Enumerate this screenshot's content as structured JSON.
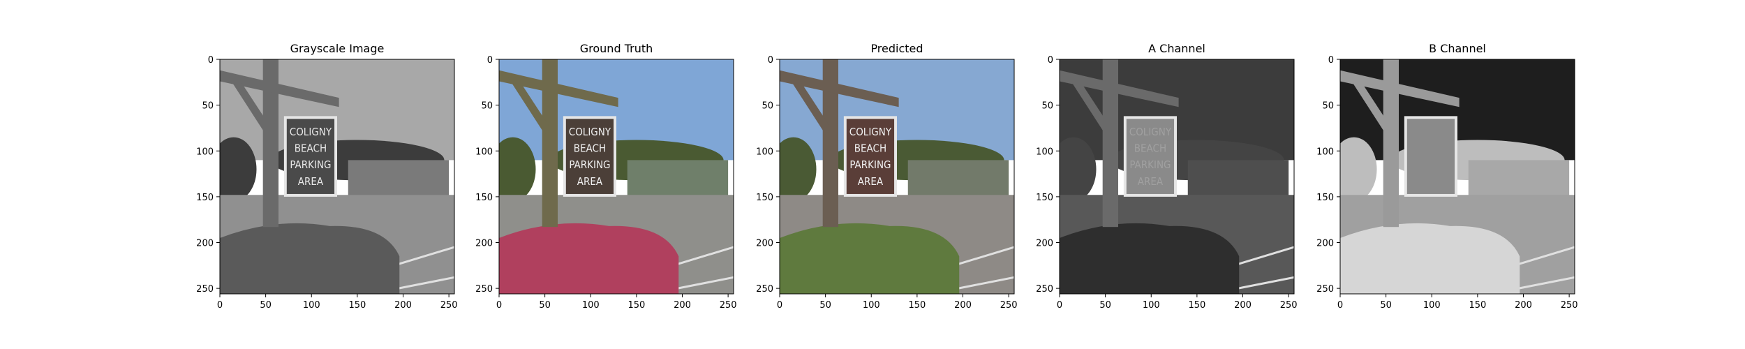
{
  "chart_data": [
    {
      "type": "image",
      "title": "Grayscale Image",
      "xlim": [
        0,
        256
      ],
      "ylim": [
        256,
        0
      ],
      "xticks": [
        0,
        50,
        100,
        150,
        200,
        250
      ],
      "yticks": [
        0,
        50,
        100,
        150,
        200,
        250
      ],
      "sign_text": [
        "COLIGNY",
        "BEACH",
        "PARKING",
        "AREA"
      ],
      "palette": {
        "sky": "#a8a8a8",
        "post": "#6a6a6a",
        "sign": "#4a4a4a",
        "road": "#909090",
        "bush": "#5a5a5a",
        "trees": "#3c3c3c",
        "building": "#7a7a7a",
        "sign_text": "#e8e8e8"
      }
    },
    {
      "type": "image",
      "title": "Ground Truth",
      "xlim": [
        0,
        256
      ],
      "ylim": [
        256,
        0
      ],
      "xticks": [
        0,
        50,
        100,
        150,
        200,
        250
      ],
      "yticks": [
        0,
        50,
        100,
        150,
        200,
        250
      ],
      "sign_text": [
        "COLIGNY",
        "BEACH",
        "PARKING",
        "AREA"
      ],
      "palette": {
        "sky": "#7fa6d6",
        "post": "#6f6a4c",
        "sign": "#4b3f38",
        "road": "#8f8f8b",
        "bush": "#b0405e",
        "trees": "#4a5a32",
        "building": "#6f7f6a",
        "sign_text": "#f0f0f0"
      }
    },
    {
      "type": "image",
      "title": "Predicted",
      "xlim": [
        0,
        256
      ],
      "ylim": [
        256,
        0
      ],
      "xticks": [
        0,
        50,
        100,
        150,
        200,
        250
      ],
      "yticks": [
        0,
        50,
        100,
        150,
        200,
        250
      ],
      "sign_text": [
        "COLIGNY",
        "BEACH",
        "PARKING",
        "AREA"
      ],
      "palette": {
        "sky": "#86a8d2",
        "post": "#6b5e52",
        "sign": "#5a3e38",
        "road": "#8e8a86",
        "bush": "#5f7a3e",
        "trees": "#4a5a34",
        "building": "#727a6a",
        "sign_text": "#f0f0f0"
      }
    },
    {
      "type": "image",
      "title": "A Channel",
      "xlim": [
        0,
        256
      ],
      "ylim": [
        256,
        0
      ],
      "xticks": [
        0,
        50,
        100,
        150,
        200,
        250
      ],
      "yticks": [
        0,
        50,
        100,
        150,
        200,
        250
      ],
      "sign_text": [
        "COLIGNY",
        "BEACH",
        "PARKING",
        "AREA"
      ],
      "palette": {
        "sky": "#3c3c3c",
        "post": "#6a6a6a",
        "sign": "#8a8a8a",
        "road": "#585858",
        "bush": "#2e2e2e",
        "trees": "#444444",
        "building": "#4e4e4e",
        "sign_text": "#a0a0a0"
      }
    },
    {
      "type": "image",
      "title": "B Channel",
      "xlim": [
        0,
        256
      ],
      "ylim": [
        256,
        0
      ],
      "xticks": [
        0,
        50,
        100,
        150,
        200,
        250
      ],
      "yticks": [
        0,
        50,
        100,
        150,
        200,
        250
      ],
      "sign_text": [],
      "palette": {
        "sky": "#1e1e1e",
        "post": "#9a9a9a",
        "sign": "#8a8a8a",
        "road": "#a0a0a0",
        "bush": "#d6d6d6",
        "trees": "#bdbdbd",
        "building": "#a8a8a8",
        "sign_text": "#8a8a8a"
      }
    }
  ]
}
